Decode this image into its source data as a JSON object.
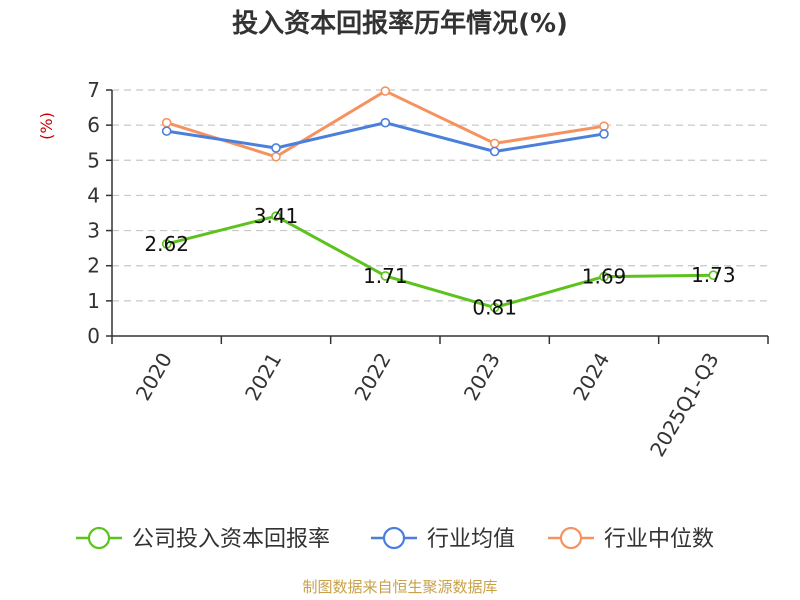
{
  "title": "投入资本回报率历年情况(%)",
  "source": "制图数据来自恒生聚源数据库",
  "chart_data": {
    "type": "line",
    "title": "投入资本回报率历年情况(%)",
    "ylabel": "(%)",
    "ylim": [
      0,
      7
    ],
    "yticks": [
      0,
      1,
      2,
      3,
      4,
      5,
      6,
      7
    ],
    "grid": true,
    "legend_position": "bottom",
    "categories": [
      "2020",
      "2021",
      "2022",
      "2023",
      "2024",
      "2025Q1-Q3"
    ],
    "series": [
      {
        "name": "公司投入资本回报率",
        "color": "#5cc21c",
        "values": [
          2.62,
          3.41,
          1.71,
          0.81,
          1.69,
          1.73
        ],
        "labels": [
          "2.62",
          "3.41",
          "1.71",
          "0.81",
          "1.69",
          "1.73"
        ]
      },
      {
        "name": "行业均值",
        "color": "#4a7fdc",
        "values": [
          5.83,
          5.35,
          6.07,
          5.25,
          5.75,
          null
        ]
      },
      {
        "name": "行业中位数",
        "color": "#f59360",
        "values": [
          6.07,
          5.1,
          6.97,
          5.48,
          5.97,
          null
        ]
      }
    ]
  }
}
